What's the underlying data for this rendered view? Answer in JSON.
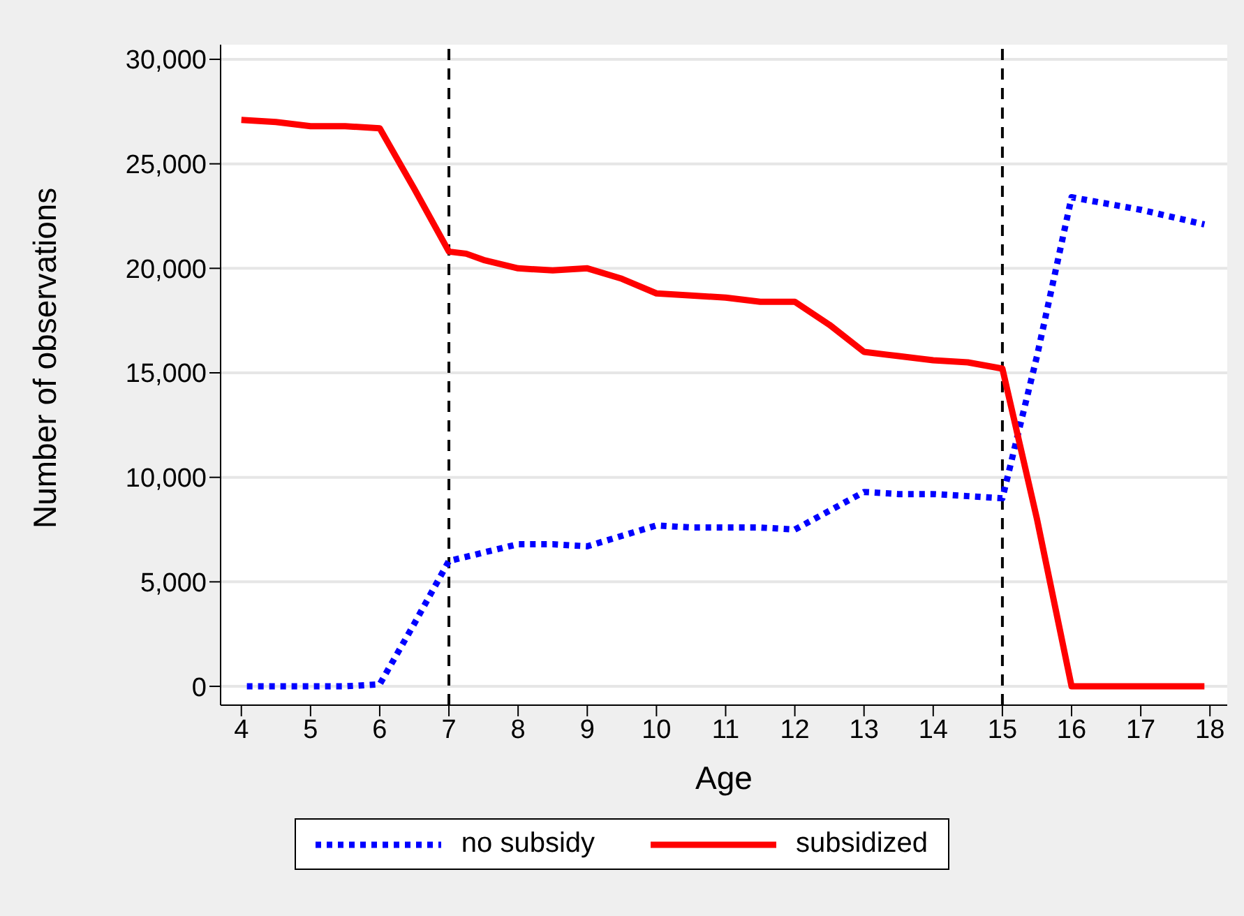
{
  "chart_data": {
    "type": "line",
    "xlabel": "Age",
    "ylabel": "Number of observations",
    "xlim": [
      3.7,
      18.25
    ],
    "xticks": [
      4,
      5,
      6,
      7,
      8,
      9,
      10,
      11,
      12,
      13,
      14,
      15,
      16,
      17,
      18
    ],
    "ylim": [
      -900,
      30700
    ],
    "yticks": [
      0,
      {
        "value": 5000,
        "label": "5,000"
      },
      {
        "value": 10000,
        "label": "10,000"
      },
      {
        "value": 15000,
        "label": "15,000"
      },
      {
        "value": 20000,
        "label": "20,000"
      },
      {
        "value": 25000,
        "label": "25,000"
      },
      {
        "value": 30000,
        "label": "30,000"
      }
    ],
    "grid": "y",
    "legend": "bottom",
    "marker": "none",
    "ref_lines": [
      {
        "axis": "x",
        "value": 7,
        "color": "#000000",
        "line_style": "dashed"
      },
      {
        "axis": "x",
        "value": 15,
        "color": "#000000",
        "line_style": "dashed"
      }
    ],
    "series": [
      {
        "name": "no subsidy",
        "color": "#0000ff",
        "line_style": "dotted",
        "x": [
          4.08,
          4.5,
          5,
          5.5,
          6,
          6.5,
          7,
          7.5,
          8,
          8.5,
          9,
          9.5,
          10,
          10.5,
          11,
          11.5,
          12,
          12.5,
          13,
          13.5,
          14,
          14.5,
          15,
          15.5,
          16,
          16.5,
          17,
          17.92
        ],
        "values": [
          0,
          0,
          0,
          0,
          100,
          3000,
          6000,
          6400,
          6800,
          6800,
          6700,
          7200,
          7700,
          7600,
          7600,
          7600,
          7500,
          8400,
          9300,
          9200,
          9200,
          9100,
          9000,
          15800,
          23400,
          23100,
          22800,
          22100
        ]
      },
      {
        "name": "subsidized",
        "color": "#ff0000",
        "line_style": "solid",
        "x": [
          4.0,
          4.5,
          5,
          5.5,
          6,
          6.5,
          7,
          7.25,
          7.5,
          8,
          8.5,
          9,
          9.5,
          10,
          10.5,
          11,
          11.5,
          12,
          12.5,
          13,
          13.5,
          14,
          14.5,
          15,
          15.5,
          16,
          16.5,
          17,
          17.92
        ],
        "values": [
          27100,
          27000,
          26800,
          26800,
          26700,
          23800,
          20800,
          20700,
          20400,
          20000,
          19900,
          20000,
          19500,
          18800,
          18700,
          18600,
          18400,
          18400,
          17300,
          16000,
          15800,
          15600,
          15500,
          15200,
          8000,
          0,
          0,
          0,
          0
        ]
      }
    ]
  }
}
